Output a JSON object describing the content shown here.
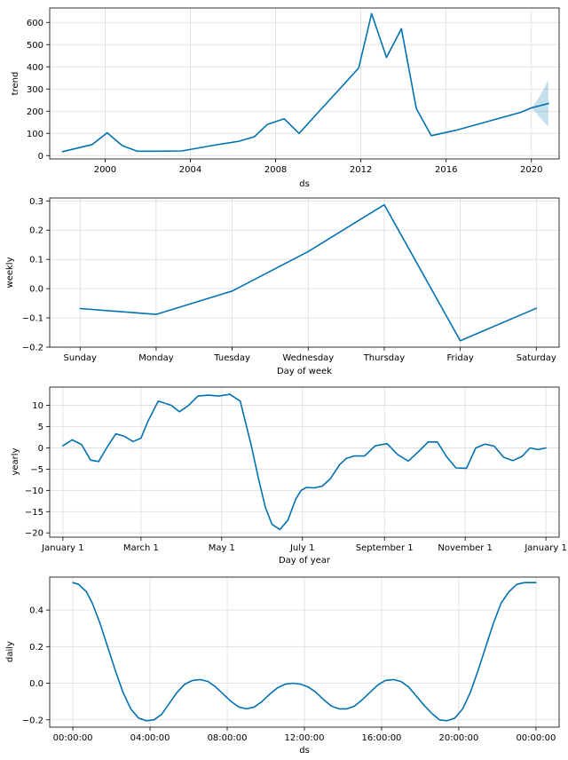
{
  "chart_data": [
    {
      "id": "trend",
      "type": "line",
      "xlabel": "ds",
      "ylabel": "trend",
      "xaxis": "year",
      "xlim": [
        1997.4,
        2021.3
      ],
      "ylim": [
        -15,
        665
      ],
      "xticks": [
        2000,
        2004,
        2008,
        2012,
        2016,
        2020
      ],
      "xtick_labels": [
        "2000",
        "2004",
        "2008",
        "2012",
        "2016",
        "2020"
      ],
      "yticks": [
        0,
        100,
        200,
        300,
        400,
        500,
        600
      ],
      "ytick_labels": [
        "0",
        "100",
        "200",
        "300",
        "400",
        "500",
        "600"
      ],
      "grid": true,
      "color": "#0072B2",
      "series": [
        {
          "x": [
            1998.0,
            1999.4,
            2000.1,
            2000.8,
            2001.5,
            2002.5,
            2003.6,
            2005.0,
            2006.3,
            2007.0,
            2007.6,
            2008.4,
            2009.1,
            2010.0,
            2011.0,
            2011.9,
            2012.5,
            2013.2,
            2013.9,
            2014.6,
            2015.3,
            2016.5,
            2018.0,
            2019.5,
            2020.0
          ],
          "y": [
            18,
            50,
            103,
            45,
            20,
            20,
            21,
            45,
            65,
            85,
            140,
            166,
            100,
            195,
            300,
            395,
            640,
            442,
            572,
            212,
            90,
            115,
            155,
            195,
            215
          ]
        }
      ],
      "forecast": {
        "x": [
          2020.0,
          2020.2,
          2020.4,
          2020.6,
          2020.8
        ],
        "y": [
          215,
          220,
          225,
          230,
          235
        ],
        "lower": [
          215,
          195,
          170,
          150,
          130
        ],
        "upper": [
          215,
          240,
          270,
          305,
          340
        ]
      }
    },
    {
      "id": "weekly",
      "type": "line",
      "xlabel": "Day of week",
      "ylabel": "weekly",
      "categories": [
        "Sunday",
        "Monday",
        "Tuesday",
        "Wednesday",
        "Thursday",
        "Friday",
        "Saturday"
      ],
      "xlim": [
        -0.4,
        6.3
      ],
      "ylim": [
        -0.2,
        0.31
      ],
      "yticks": [
        -0.2,
        -0.1,
        0.0,
        0.1,
        0.2,
        0.3
      ],
      "ytick_labels": [
        "−0.2",
        "−0.1",
        "0.0",
        "0.1",
        "0.2",
        "0.3"
      ],
      "grid": true,
      "color": "#0072B2",
      "series": [
        {
          "values": [
            -0.068,
            -0.088,
            -0.008,
            0.127,
            0.287,
            -0.178,
            -0.067
          ]
        }
      ]
    },
    {
      "id": "yearly",
      "type": "line",
      "xlabel": "Day of year",
      "ylabel": "yearly",
      "xaxis": "day",
      "xlim": [
        -10,
        375
      ],
      "ylim": [
        -21,
        14.3
      ],
      "xticks": [
        0,
        59,
        120,
        181,
        243,
        304,
        365
      ],
      "xtick_labels": [
        "January 1",
        "March 1",
        "May 1",
        "July 1",
        "September 1",
        "November 1",
        "January 1"
      ],
      "yticks": [
        -20,
        -15,
        -10,
        -5,
        0,
        5,
        10
      ],
      "ytick_labels": [
        "−20",
        "−15",
        "−10",
        "−5",
        "0",
        "5",
        "10"
      ],
      "grid": true,
      "color": "#0072B2",
      "series": [
        {
          "x": [
            0,
            7,
            14,
            21,
            27,
            34,
            40,
            46,
            53,
            59,
            64,
            72,
            82,
            88,
            95,
            102,
            110,
            118,
            126,
            134,
            142,
            148,
            153,
            158,
            164,
            170,
            176,
            180,
            184,
            190,
            196,
            202,
            209,
            214,
            220,
            228,
            236,
            245,
            253,
            261,
            269,
            276,
            283,
            290,
            297,
            305,
            312,
            319,
            326,
            333,
            340,
            347,
            353,
            359,
            365
          ],
          "y": [
            0.5,
            1.9,
            0.8,
            -2.9,
            -3.2,
            0.5,
            3.3,
            2.8,
            1.5,
            2.3,
            6.1,
            11.0,
            10.0,
            8.5,
            10.0,
            12.2,
            12.4,
            12.2,
            12.6,
            11.0,
            1.0,
            -7.5,
            -14.0,
            -18.0,
            -19.2,
            -17.0,
            -12.0,
            -10.0,
            -9.3,
            -9.4,
            -9.0,
            -7.3,
            -4.0,
            -2.5,
            -1.9,
            -1.9,
            0.5,
            1.0,
            -1.6,
            -3.1,
            -0.8,
            1.4,
            1.4,
            -2.1,
            -4.7,
            -4.8,
            0.0,
            0.9,
            0.4,
            -2.2,
            -3.0,
            -2.0,
            0.0,
            -0.4,
            0.0
          ]
        }
      ]
    },
    {
      "id": "daily",
      "type": "line",
      "xlabel": "ds",
      "ylabel": "daily",
      "xaxis": "hour",
      "xlim": [
        -1.2,
        25.2
      ],
      "ylim": [
        -0.24,
        0.58
      ],
      "xticks": [
        0,
        4,
        8,
        12,
        16,
        20,
        24
      ],
      "xtick_labels": [
        "00:00:00",
        "04:00:00",
        "08:00:00",
        "12:00:00",
        "16:00:00",
        "20:00:00",
        "00:00:00"
      ],
      "yticks": [
        -0.2,
        0.0,
        0.2,
        0.4
      ],
      "ytick_labels": [
        "−0.2",
        "0.0",
        "0.2",
        "0.4"
      ],
      "grid": true,
      "color": "#0072B2",
      "series": [
        {
          "x": [
            0,
            0.3,
            0.7,
            1.0,
            1.4,
            1.8,
            2.2,
            2.6,
            3.0,
            3.4,
            3.8,
            4.2,
            4.6,
            5.0,
            5.4,
            5.8,
            6.2,
            6.6,
            7.0,
            7.4,
            7.8,
            8.2,
            8.6,
            9.0,
            9.4,
            9.8,
            10.2,
            10.6,
            11.0,
            11.4,
            11.8,
            12.2,
            12.6,
            13.0,
            13.4,
            13.8,
            14.2,
            14.6,
            15.0,
            15.4,
            15.8,
            16.2,
            16.6,
            17.0,
            17.4,
            17.8,
            18.2,
            18.6,
            19.0,
            19.4,
            19.8,
            20.2,
            20.6,
            21.0,
            21.4,
            21.8,
            22.2,
            22.6,
            23.0,
            23.4,
            23.7,
            24.0
          ],
          "y": [
            0.55,
            0.54,
            0.5,
            0.44,
            0.33,
            0.2,
            0.07,
            -0.05,
            -0.14,
            -0.19,
            -0.205,
            -0.2,
            -0.17,
            -0.11,
            -0.05,
            -0.005,
            0.015,
            0.02,
            0.01,
            -0.02,
            -0.06,
            -0.1,
            -0.13,
            -0.14,
            -0.13,
            -0.1,
            -0.06,
            -0.025,
            -0.005,
            0.0,
            -0.005,
            -0.02,
            -0.05,
            -0.09,
            -0.125,
            -0.14,
            -0.14,
            -0.125,
            -0.09,
            -0.05,
            -0.01,
            0.015,
            0.02,
            0.01,
            -0.02,
            -0.07,
            -0.12,
            -0.165,
            -0.2,
            -0.205,
            -0.19,
            -0.14,
            -0.05,
            0.07,
            0.2,
            0.33,
            0.44,
            0.5,
            0.54,
            0.55,
            0.55,
            0.55
          ]
        }
      ]
    }
  ]
}
